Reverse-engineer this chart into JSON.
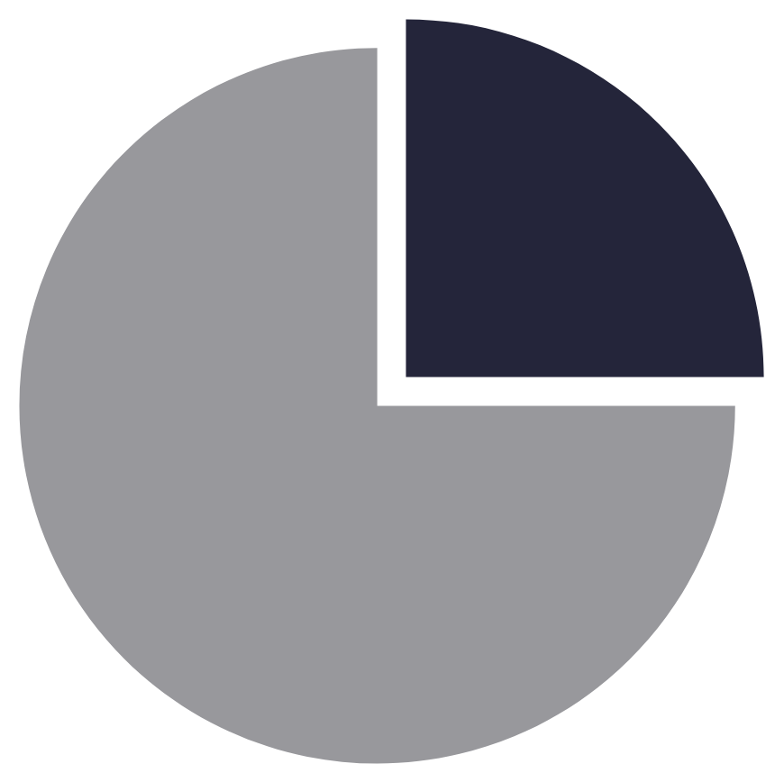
{
  "chart_data": {
    "type": "pie",
    "categories": [
      null,
      null
    ],
    "values": [
      25,
      75
    ],
    "colors": [
      "#24253a",
      "#98989c"
    ]
  }
}
